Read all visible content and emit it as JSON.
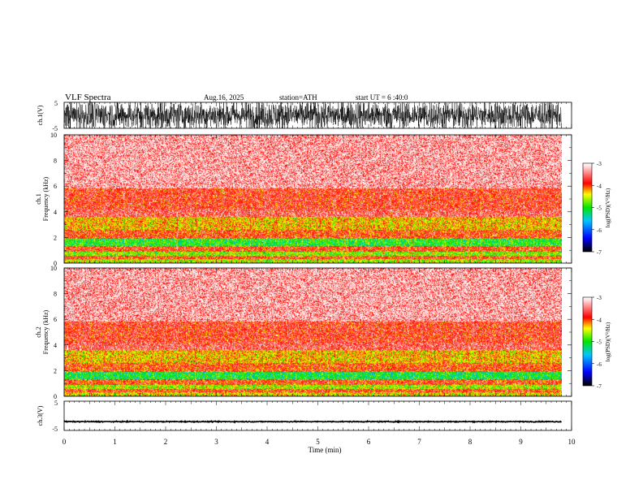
{
  "header": {
    "title": "VLF  Spectra",
    "date": "Aug.16, 2025",
    "station": "station=ATH",
    "start_ut": "start  UT  =   6  :40:0"
  },
  "chart_data": [
    {
      "type": "line",
      "id": "waveform-ch1",
      "ylabel": "ch.1(V)",
      "ylim": [
        -5,
        5
      ],
      "y_ticklabels": [
        "5",
        "-5"
      ],
      "xlim": [
        0,
        10
      ],
      "data_end_min": 9.8,
      "amplitude_range_V": [
        -5,
        5
      ],
      "description_level": "saturated broadband noise"
    },
    {
      "type": "heatmap",
      "id": "spectrogram-ch1",
      "ylabel": "ch.1\nFrequency (kHz)",
      "ylabel_line1": "ch.1",
      "ylabel_line2": "Frequency (kHz)",
      "ylim": [
        0,
        10
      ],
      "y_ticks": [
        0,
        2,
        4,
        6,
        8,
        10
      ],
      "xlim": [
        0,
        10
      ],
      "data_end_min": 9.8,
      "colorbar": {
        "label": "log(PSD)(V²/Hz)",
        "range": [
          -7,
          -3
        ],
        "ticks": [
          "-3",
          "-4",
          "-5",
          "-6",
          "-7"
        ]
      },
      "bands_kHz_logpsd": [
        {
          "from": 0.0,
          "to": 0.3,
          "level": -4.6
        },
        {
          "from": 0.3,
          "to": 0.6,
          "level": -3.9
        },
        {
          "from": 0.6,
          "to": 0.9,
          "level": -4.7
        },
        {
          "from": 0.9,
          "to": 1.3,
          "level": -3.9
        },
        {
          "from": 1.3,
          "to": 1.9,
          "level": -5.0
        },
        {
          "from": 1.9,
          "to": 2.6,
          "level": -3.95
        },
        {
          "from": 2.6,
          "to": 3.6,
          "level": -4.3
        },
        {
          "from": 3.6,
          "to": 4.2,
          "level": -3.6
        },
        {
          "from": 4.2,
          "to": 5.8,
          "level": -3.75
        },
        {
          "from": 5.8,
          "to": 10.0,
          "level": -3.4
        }
      ]
    },
    {
      "type": "heatmap",
      "id": "spectrogram-ch2",
      "ylabel": "ch.2\nFrequency (kHz)",
      "ylabel_line1": "ch.2",
      "ylabel_line2": "Frequency (kHz)",
      "ylim": [
        0,
        10
      ],
      "y_ticks": [
        0,
        2,
        4,
        6,
        8,
        10
      ],
      "xlim": [
        0,
        10
      ],
      "data_end_min": 9.8,
      "colorbar": {
        "label": "log(PSD)(V²/Hz)",
        "range": [
          -7,
          -3
        ],
        "ticks": [
          "-3",
          "-4",
          "-5",
          "-6",
          "-7"
        ]
      },
      "bands_kHz_logpsd": [
        {
          "from": 0.0,
          "to": 0.3,
          "level": -4.4
        },
        {
          "from": 0.3,
          "to": 0.6,
          "level": -3.9
        },
        {
          "from": 0.6,
          "to": 0.9,
          "level": -4.6
        },
        {
          "from": 0.9,
          "to": 1.3,
          "level": -3.9
        },
        {
          "from": 1.3,
          "to": 1.9,
          "level": -5.1
        },
        {
          "from": 1.9,
          "to": 2.6,
          "level": -3.95
        },
        {
          "from": 2.6,
          "to": 3.6,
          "level": -4.3
        },
        {
          "from": 3.6,
          "to": 4.2,
          "level": -3.6
        },
        {
          "from": 4.2,
          "to": 5.8,
          "level": -3.75
        },
        {
          "from": 5.8,
          "to": 10.0,
          "level": -3.4
        }
      ]
    },
    {
      "type": "line",
      "id": "waveform-ch3",
      "ylabel": "ch.3(V)",
      "ylim": [
        -5,
        5
      ],
      "y_ticklabels": [
        "5",
        "-5"
      ],
      "xlim": [
        0,
        10
      ],
      "data_end_min": 9.8,
      "baseline_V": -2.0,
      "amplitude_range_V": [
        -2.3,
        -1.7
      ]
    }
  ],
  "x_axis": {
    "label": "Time  (min)",
    "ticks": [
      "0",
      "1",
      "2",
      "3",
      "4",
      "5",
      "6",
      "7",
      "8",
      "9",
      "10"
    ]
  },
  "colors": {
    "background": "#ffffff",
    "trace": "#000000",
    "colormap": [
      "#000000",
      "#0000ff",
      "#00c8ff",
      "#00ff00",
      "#ffff00",
      "#ff0000",
      "#ffffff"
    ]
  }
}
